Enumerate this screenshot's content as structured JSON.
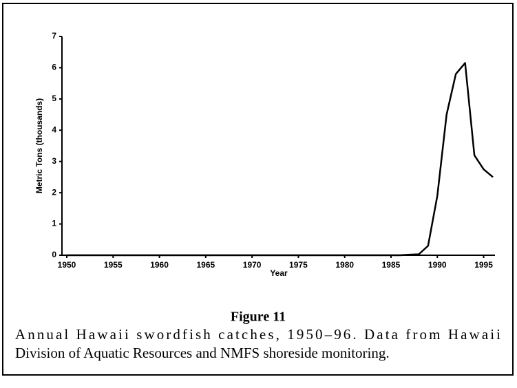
{
  "chart_data": {
    "type": "line",
    "x": [
      1950,
      1986,
      1987,
      1988,
      1989,
      1990,
      1991,
      1992,
      1993,
      1994,
      1995,
      1996
    ],
    "series": [
      {
        "name": "Swordfish catch",
        "color": "#000000",
        "values": [
          0,
          0,
          0.02,
          0.03,
          0.3,
          1.9,
          4.5,
          5.8,
          6.15,
          3.2,
          2.75,
          2.5
        ]
      }
    ],
    "xlim": [
      1950,
      1996
    ],
    "xticks": [
      1950,
      1955,
      1960,
      1965,
      1970,
      1975,
      1980,
      1985,
      1990,
      1995
    ],
    "ylim": [
      0,
      7
    ],
    "yticks": [
      0,
      1,
      2,
      3,
      4,
      5,
      6,
      7
    ],
    "xlabel": "Year",
    "ylabel": "Metric Tons (thousands)",
    "figure_label": "Figure 11",
    "caption": [
      "Annual Hawaii swordfish catches, 1950–96. Data from Hawaii",
      "Division of Aquatic Resources and NMFS shoreside monitoring."
    ]
  }
}
